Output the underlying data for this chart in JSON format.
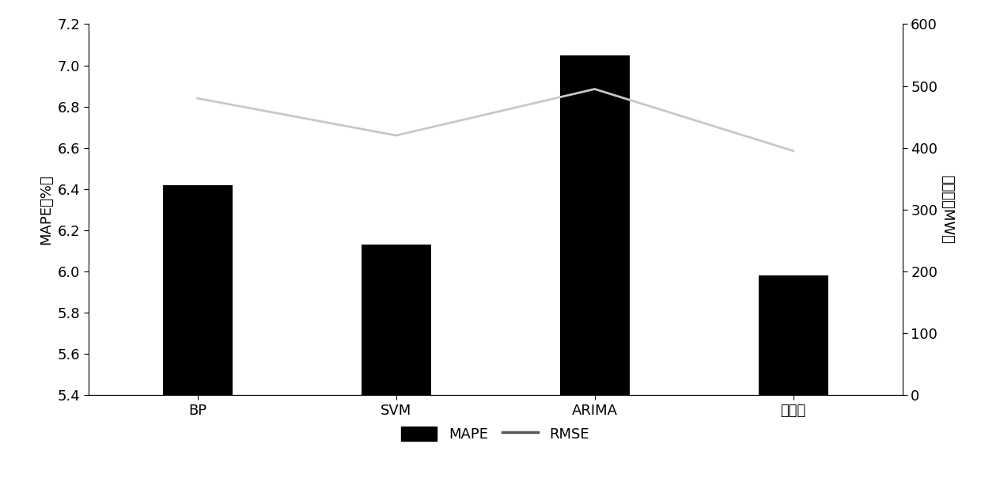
{
  "categories": [
    "BP",
    "SVM",
    "ARIMA",
    "本发明"
  ],
  "mape_values": [
    6.42,
    6.13,
    7.05,
    5.98
  ],
  "rmse_values": [
    480,
    420,
    495,
    395
  ],
  "bar_color": "#000000",
  "line_color": "#c8c8c8",
  "line_width": 2.0,
  "bar_width": 0.35,
  "left_ylabel": "MAPE（%）",
  "right_ylabel": "均方差（MW）",
  "left_ylim": [
    5.4,
    7.2
  ],
  "left_yticks": [
    5.4,
    5.6,
    5.8,
    6.0,
    6.2,
    6.4,
    6.6,
    6.8,
    7.0,
    7.2
  ],
  "right_ylim": [
    0,
    600
  ],
  "right_yticks": [
    0,
    100,
    200,
    300,
    400,
    500,
    600
  ],
  "legend_labels": [
    "MAPE",
    "RMSE"
  ],
  "background_color": "#ffffff",
  "tick_fontsize": 13,
  "label_fontsize": 13
}
